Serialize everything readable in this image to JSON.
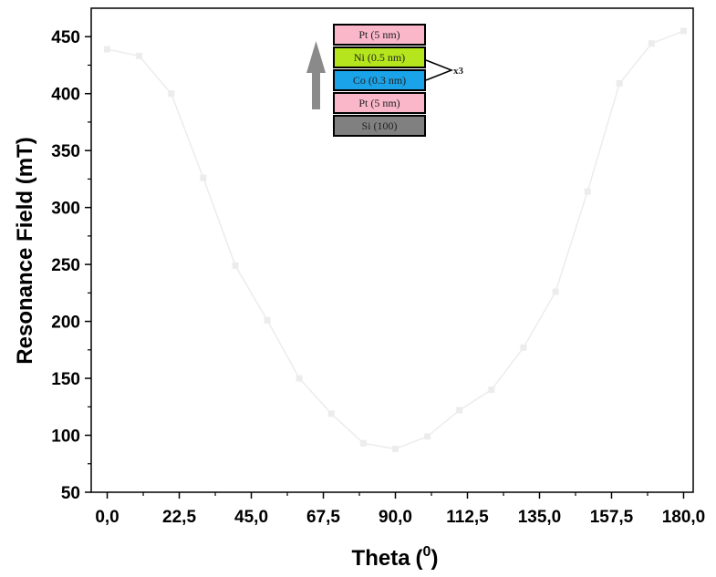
{
  "chart_data": {
    "type": "line",
    "title": "",
    "xlabel": "Theta",
    "xlabel_unit_open": "(",
    "xlabel_unit_sup": "0",
    "xlabel_unit_close": ")",
    "ylabel": "Resonance Field (mT)",
    "xlim": [
      -5,
      183
    ],
    "ylim": [
      50,
      475
    ],
    "xtick_values": [
      0,
      22.5,
      45,
      67.5,
      90,
      112.5,
      135,
      157.5,
      180
    ],
    "xtick_labels": [
      "0,0",
      "22,5",
      "45,0",
      "67,5",
      "90,0",
      "112,5",
      "135,0",
      "157,5",
      "180,0"
    ],
    "ytick_values": [
      50,
      100,
      150,
      200,
      250,
      300,
      350,
      400,
      450
    ],
    "ytick_labels": [
      "50",
      "100",
      "150",
      "200",
      "250",
      "300",
      "350",
      "400",
      "450"
    ],
    "series": [
      {
        "color": "#ececec",
        "x": [
          0,
          10,
          20,
          30,
          40,
          50,
          60,
          70,
          80,
          90,
          100,
          110,
          120,
          130,
          140,
          150,
          160,
          170,
          180
        ],
        "y": [
          439,
          433,
          400,
          326,
          249,
          201,
          150,
          119,
          93,
          88,
          99,
          122,
          140,
          177,
          226,
          314,
          409,
          444,
          455
        ]
      }
    ],
    "inset": {
      "layers": [
        {
          "label": "Pt (5 nm)",
          "color": "#f9b7c9"
        },
        {
          "label": "Ni (0.5 nm)",
          "color": "#b5e61d"
        },
        {
          "label": "Co (0.3 nm)",
          "color": "#1aa3e8"
        },
        {
          "label": "Pt (5 nm)",
          "color": "#f9b7c9"
        },
        {
          "label": "Si (100)",
          "color": "#808080"
        }
      ],
      "repeat_label": "x3",
      "arrow_color": "#8a8a8a"
    }
  }
}
